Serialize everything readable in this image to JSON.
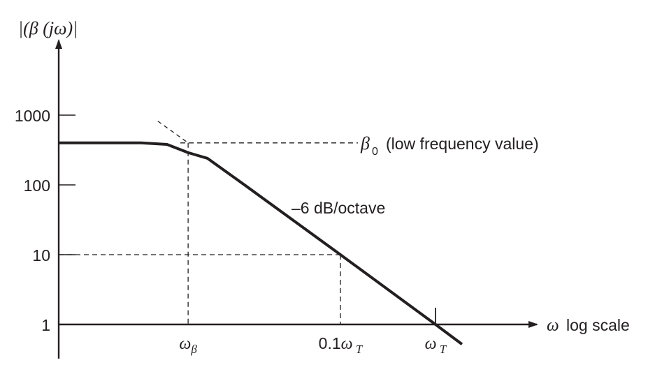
{
  "chart_data": {
    "type": "line",
    "title": "",
    "y_axis_label": {
      "base": "|(β (jω)|",
      "text": "|(β (jω)|"
    },
    "x_axis_label": {
      "symbol": "ω",
      "text": "log scale"
    },
    "y_scale": "log",
    "x_scale": "log",
    "y_ticks": [
      {
        "value": 1,
        "label": "1"
      },
      {
        "value": 10,
        "label": "10"
      },
      {
        "value": 100,
        "label": "100"
      },
      {
        "value": 1000,
        "label": "1000"
      }
    ],
    "x_ticks": [
      {
        "key": "omega_beta",
        "base": "ω",
        "sub": "β"
      },
      {
        "key": "point1_omega_T",
        "prefix": "0.1",
        "base": "ω",
        "sub": "T"
      },
      {
        "key": "omega_T",
        "base": "ω",
        "sub": "T"
      }
    ],
    "low_frequency_value": 400,
    "omega_beta_ratio_to_omega_T": 0.0025,
    "series": [
      {
        "kind": "response",
        "x_relative_to_omega_T": [
          0.00025,
          0.0008,
          0.0015,
          0.0025,
          0.004,
          0.01,
          0.1,
          1.0,
          1.9
        ],
        "values": [
          400,
          400,
          380,
          290,
          240,
          98,
          10,
          1,
          0.52
        ]
      },
      {
        "kind": "asymptote",
        "x_relative_to_omega_T": [
          0.0012,
          0.0025
        ],
        "values": [
          820,
          400
        ]
      }
    ],
    "annotations": {
      "beta0_symbol": "β",
      "beta0_sub": "0",
      "beta0_text": "(low frequency value)",
      "slope": "–6 dB/octave"
    },
    "grid": false,
    "legend": "none"
  }
}
